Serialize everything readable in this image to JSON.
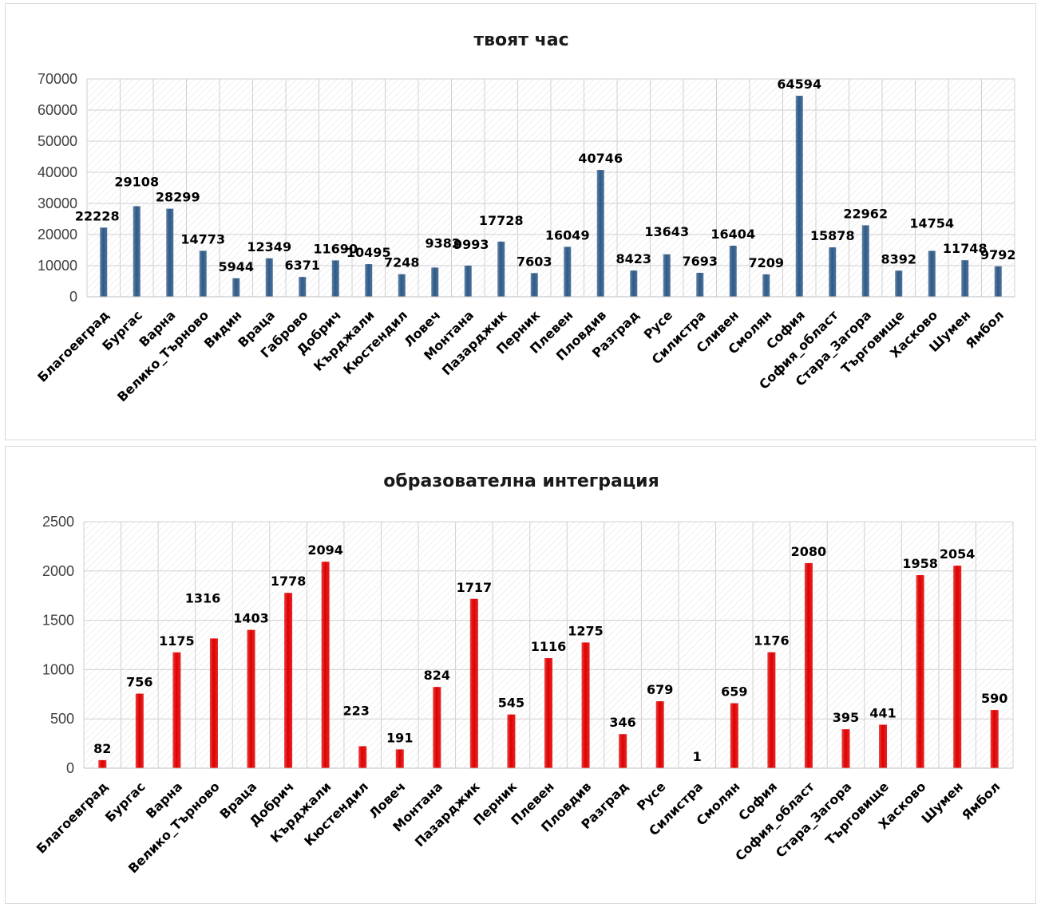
{
  "chart_data": [
    {
      "type": "bar",
      "title": "твоят час",
      "xlabel": "",
      "ylabel": "",
      "ylim": [
        0,
        70000
      ],
      "yticks": [
        0,
        10000,
        20000,
        30000,
        40000,
        50000,
        60000,
        70000
      ],
      "grid": true,
      "legend": "none",
      "color": "#2e5a87",
      "categories": [
        "Благоевград",
        "Бургас",
        "Варна",
        "Велико_Търново",
        "Видин",
        "Враца",
        "Габрово",
        "Добрич",
        "Кърджали",
        "Кюстендил",
        "Ловеч",
        "Монтана",
        "Пазарджик",
        "Перник",
        "Плевен",
        "Пловдив",
        "Разград",
        "Русе",
        "Силистра",
        "Сливен",
        "Смолян",
        "София",
        "София_област",
        "Стара_Загора",
        "Търговище",
        "Хасково",
        "Шумен",
        "Ямбол"
      ],
      "values": [
        22228,
        29108,
        28299,
        14773,
        5944,
        12349,
        6371,
        11690,
        10495,
        7248,
        9382,
        9993,
        17728,
        7603,
        16049,
        40746,
        8423,
        13643,
        7693,
        16404,
        7209,
        64594,
        15878,
        22962,
        8392,
        14754,
        11748,
        9792
      ]
    },
    {
      "type": "bar",
      "title": "образователна интеграция",
      "xlabel": "",
      "ylabel": "",
      "ylim": [
        0,
        2500
      ],
      "yticks": [
        0,
        500,
        1000,
        1500,
        2000,
        2500
      ],
      "grid": true,
      "legend": "none",
      "color": "#e00000",
      "categories": [
        "Благоевград",
        "Бургас",
        "Варна",
        "Велико_Търново",
        "Враца",
        "Добрич",
        "Кърджали",
        "Кюстендил",
        "Ловеч",
        "Монтана",
        "Пазарджик",
        "Перник",
        "Плевен",
        "Пловдив",
        "Разград",
        "Русе",
        "Силистра",
        "Смолян",
        "София",
        "София_област",
        "Стара_Загора",
        "Търговище",
        "Хасково",
        "Шумен",
        "Ямбол"
      ],
      "values": [
        82,
        756,
        1175,
        1316,
        1403,
        1778,
        2094,
        223,
        191,
        824,
        1717,
        545,
        1116,
        1275,
        346,
        679,
        1,
        659,
        1176,
        2080,
        395,
        441,
        1958,
        2054,
        590
      ]
    }
  ]
}
